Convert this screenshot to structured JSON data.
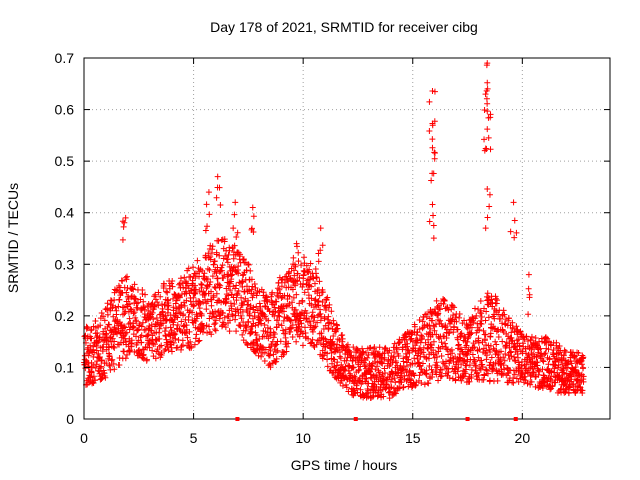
{
  "chart_data": {
    "type": "scatter",
    "title": "Day 178 of 2021, SRMTID for receiver cibg",
    "xlabel": "GPS time / hours",
    "ylabel": "SRMTID / TECUs",
    "xlim": [
      0,
      24
    ],
    "ylim": [
      0,
      0.7
    ],
    "x_ticks": [
      0,
      5,
      10,
      15,
      20
    ],
    "x_tick_labels": [
      "0",
      "5",
      "10",
      "15",
      "20"
    ],
    "y_ticks": [
      0,
      0.1,
      0.2,
      0.3,
      0.4,
      0.5,
      0.6,
      0.7
    ],
    "y_tick_labels": [
      "0",
      "0.1",
      "0.2",
      "0.3",
      "0.4",
      "0.5",
      "0.6",
      "0.7"
    ],
    "grid": true,
    "marker": "plus",
    "marker_color": "#ff0000",
    "marker_x_positions": [
      7.0,
      12.4,
      17.5,
      19.7
    ],
    "series_baseline": {
      "name": "SRMTID",
      "x": [
        0.0,
        0.5,
        1.0,
        1.5,
        2.0,
        2.5,
        3.0,
        3.5,
        4.0,
        4.5,
        5.0,
        5.5,
        6.0,
        6.5,
        7.0,
        7.5,
        8.0,
        8.5,
        9.0,
        9.5,
        10.0,
        10.5,
        11.0,
        11.5,
        12.0,
        12.5,
        13.0,
        13.5,
        14.0,
        14.5,
        15.0,
        15.5,
        16.0,
        16.5,
        17.0,
        17.5,
        18.0,
        18.5,
        19.0,
        19.5,
        20.0,
        20.5,
        21.0,
        21.5,
        22.0,
        22.5
      ],
      "y": [
        0.12,
        0.13,
        0.15,
        0.18,
        0.2,
        0.19,
        0.17,
        0.19,
        0.2,
        0.21,
        0.22,
        0.24,
        0.26,
        0.26,
        0.25,
        0.22,
        0.19,
        0.17,
        0.2,
        0.22,
        0.23,
        0.22,
        0.18,
        0.13,
        0.1,
        0.09,
        0.09,
        0.09,
        0.09,
        0.11,
        0.12,
        0.13,
        0.15,
        0.16,
        0.14,
        0.13,
        0.15,
        0.16,
        0.15,
        0.13,
        0.12,
        0.11,
        0.11,
        0.1,
        0.09,
        0.09
      ],
      "spread": [
        0.06,
        0.06,
        0.07,
        0.08,
        0.08,
        0.07,
        0.06,
        0.07,
        0.07,
        0.08,
        0.08,
        0.09,
        0.09,
        0.09,
        0.09,
        0.08,
        0.07,
        0.07,
        0.08,
        0.08,
        0.09,
        0.08,
        0.07,
        0.06,
        0.05,
        0.05,
        0.05,
        0.05,
        0.05,
        0.05,
        0.06,
        0.07,
        0.08,
        0.08,
        0.07,
        0.06,
        0.08,
        0.09,
        0.08,
        0.06,
        0.05,
        0.05,
        0.05,
        0.05,
        0.04,
        0.04
      ]
    },
    "peaks": [
      {
        "x": 1.9,
        "y": 0.39
      },
      {
        "x": 5.7,
        "y": 0.44
      },
      {
        "x": 6.1,
        "y": 0.47
      },
      {
        "x": 6.9,
        "y": 0.42
      },
      {
        "x": 7.7,
        "y": 0.41
      },
      {
        "x": 9.7,
        "y": 0.34
      },
      {
        "x": 10.8,
        "y": 0.37
      },
      {
        "x": 15.9,
        "y": 0.636
      },
      {
        "x": 15.9,
        "y": 0.573
      },
      {
        "x": 15.9,
        "y": 0.526
      },
      {
        "x": 15.9,
        "y": 0.416
      },
      {
        "x": 18.4,
        "y": 0.69
      },
      {
        "x": 18.4,
        "y": 0.652
      },
      {
        "x": 18.4,
        "y": 0.597
      },
      {
        "x": 18.4,
        "y": 0.562
      },
      {
        "x": 18.4,
        "y": 0.446
      },
      {
        "x": 19.6,
        "y": 0.42
      },
      {
        "x": 20.3,
        "y": 0.28
      }
    ]
  }
}
